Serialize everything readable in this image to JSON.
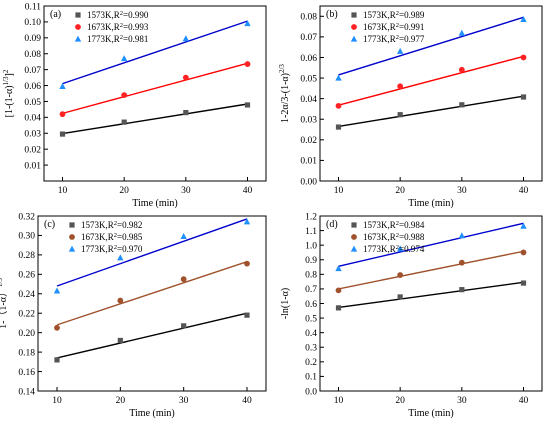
{
  "chart_data": [
    {
      "type": "scatter",
      "panel_label": "(a)",
      "xlabel": "Time (min)",
      "ylabel_parts": [
        "[1-(1-α)",
        "1/3",
        "]",
        "2"
      ],
      "xlim": [
        7,
        43
      ],
      "ylim": [
        0,
        0.11
      ],
      "xticks": [
        10,
        20,
        30,
        40
      ],
      "yticks": [
        0.01,
        0.02,
        0.03,
        0.04,
        0.05,
        0.06,
        0.07,
        0.08,
        0.09,
        0.1,
        0.11
      ],
      "ytick_decimals": 2,
      "legend_position": "top-left",
      "series": [
        {
          "name": "1573K,R2=0.990",
          "legend_parts": [
            "1573K,R",
            "2",
            "=0.990"
          ],
          "marker": "square",
          "color": "#555555",
          "line_color": "#000000",
          "x": [
            10,
            20,
            30,
            40
          ],
          "y": [
            0.0295,
            0.037,
            0.043,
            0.0478
          ],
          "fit": [
            0.0298,
            0.0484
          ]
        },
        {
          "name": "1673K,R2=0.993",
          "legend_parts": [
            "1673K,R",
            "2",
            "=0.993"
          ],
          "marker": "circle",
          "color": "#ff2222",
          "line_color": "#ff0000",
          "x": [
            10,
            20,
            30,
            40
          ],
          "y": [
            0.042,
            0.054,
            0.065,
            0.0735
          ],
          "fit": [
            0.0425,
            0.074
          ]
        },
        {
          "name": "1773K,R2=0.981",
          "legend_parts": [
            "1773K,R",
            "2",
            "=0.981"
          ],
          "marker": "triangle",
          "color": "#1e90ff",
          "line_color": "#0000cc",
          "x": [
            10,
            20,
            30,
            40
          ],
          "y": [
            0.0595,
            0.077,
            0.0895,
            0.099
          ],
          "fit": [
            0.0612,
            0.1005
          ]
        }
      ]
    },
    {
      "type": "scatter",
      "panel_label": "(b)",
      "xlabel": "Time (min)",
      "ylabel_parts": [
        "1-2α/3-(1-α)",
        "2/3",
        "",
        ""
      ],
      "xlim": [
        7,
        43
      ],
      "ylim": [
        0,
        0.085
      ],
      "xticks": [
        10,
        20,
        30,
        40
      ],
      "yticks": [
        0.0,
        0.01,
        0.02,
        0.03,
        0.04,
        0.05,
        0.06,
        0.07,
        0.08
      ],
      "ytick_decimals": 2,
      "legend_position": "top-left",
      "series": [
        {
          "name": "1573K,R2=0.989",
          "legend_parts": [
            "1573K,R",
            "2",
            "=0.989"
          ],
          "marker": "square",
          "color": "#555555",
          "line_color": "#000000",
          "x": [
            10,
            20,
            30,
            40
          ],
          "y": [
            0.0262,
            0.0322,
            0.037,
            0.0408
          ],
          "fit": [
            0.0265,
            0.0412
          ]
        },
        {
          "name": "1673K,R2=0.991",
          "legend_parts": [
            "1673K,R",
            "2",
            "=0.991"
          ],
          "marker": "circle",
          "color": "#ff2222",
          "line_color": "#ff0000",
          "x": [
            10,
            20,
            30,
            40
          ],
          "y": [
            0.0365,
            0.046,
            0.054,
            0.06
          ],
          "fit": [
            0.0368,
            0.0605
          ]
        },
        {
          "name": "1773K,R2=0.977",
          "legend_parts": [
            "1773K,R",
            "2",
            "=0.977"
          ],
          "marker": "triangle",
          "color": "#1e90ff",
          "line_color": "#0000cc",
          "x": [
            10,
            20,
            30,
            40
          ],
          "y": [
            0.05,
            0.063,
            0.0718,
            0.0785
          ],
          "fit": [
            0.0515,
            0.0795
          ]
        }
      ]
    },
    {
      "type": "scatter",
      "panel_label": "(c)",
      "xlabel": "Time (min)",
      "ylabel_parts": [
        "1-（1-α）",
        "1/3",
        "",
        ""
      ],
      "xlim": [
        7,
        43
      ],
      "ylim": [
        0.14,
        0.32
      ],
      "xticks": [
        10,
        20,
        30,
        40
      ],
      "yticks": [
        0.14,
        0.16,
        0.18,
        0.2,
        0.22,
        0.24,
        0.26,
        0.28,
        0.3,
        0.32
      ],
      "ytick_decimals": 2,
      "legend_position": "top-left",
      "series": [
        {
          "name": "1573K,R2=0.982",
          "legend_parts": [
            "1573K,R",
            "2",
            "=0.982"
          ],
          "marker": "square",
          "color": "#555555",
          "line_color": "#000000",
          "x": [
            10,
            20,
            30,
            40
          ],
          "y": [
            0.172,
            0.192,
            0.207,
            0.218
          ],
          "fit": [
            0.174,
            0.22
          ]
        },
        {
          "name": "1673K,R2=0.985",
          "legend_parts": [
            "1673K,R",
            "2",
            "=0.985"
          ],
          "marker": "circle",
          "color": "#a0522d",
          "line_color": "#a0522d",
          "x": [
            10,
            20,
            30,
            40
          ],
          "y": [
            0.205,
            0.233,
            0.255,
            0.271
          ],
          "fit": [
            0.208,
            0.273
          ]
        },
        {
          "name": "1773K,R2=0.970",
          "legend_parts": [
            "1773K,R",
            "2",
            "=0.970"
          ],
          "marker": "triangle",
          "color": "#1e90ff",
          "line_color": "#0000cc",
          "x": [
            10,
            20,
            30,
            40
          ],
          "y": [
            0.243,
            0.277,
            0.299,
            0.314
          ],
          "fit": [
            0.248,
            0.317
          ]
        }
      ]
    },
    {
      "type": "scatter",
      "panel_label": "(d)",
      "xlabel": "Time (min)",
      "ylabel_parts": [
        "-ln(1-α)",
        "",
        "",
        ""
      ],
      "xlim": [
        7,
        43
      ],
      "ylim": [
        0,
        1.2
      ],
      "xticks": [
        10,
        20,
        30,
        40
      ],
      "yticks": [
        0.0,
        0.1,
        0.2,
        0.3,
        0.4,
        0.5,
        0.6,
        0.7,
        0.8,
        0.9,
        1.0,
        1.1,
        1.2
      ],
      "ytick_decimals": 1,
      "legend_position": "top-left",
      "series": [
        {
          "name": "1573K,R2=0.984",
          "legend_parts": [
            "1573K,R",
            "2",
            "=0.984"
          ],
          "marker": "square",
          "color": "#555555",
          "line_color": "#000000",
          "x": [
            10,
            20,
            30,
            40
          ],
          "y": [
            0.57,
            0.645,
            0.695,
            0.74
          ],
          "fit": [
            0.573,
            0.745
          ]
        },
        {
          "name": "1673K,R2=0.988",
          "legend_parts": [
            "1673K,R",
            "2",
            "=0.988"
          ],
          "marker": "circle",
          "color": "#a0522d",
          "line_color": "#a0522d",
          "x": [
            10,
            20,
            30,
            40
          ],
          "y": [
            0.69,
            0.795,
            0.88,
            0.95
          ],
          "fit": [
            0.7,
            0.958
          ]
        },
        {
          "name": "1773K,R2=0.974",
          "legend_parts": [
            "1773K,R",
            "2",
            "=0.974"
          ],
          "marker": "triangle",
          "color": "#1e90ff",
          "line_color": "#0000cc",
          "x": [
            10,
            20,
            30,
            40
          ],
          "y": [
            0.84,
            0.975,
            1.065,
            1.13
          ],
          "fit": [
            0.855,
            1.15
          ]
        }
      ]
    }
  ]
}
